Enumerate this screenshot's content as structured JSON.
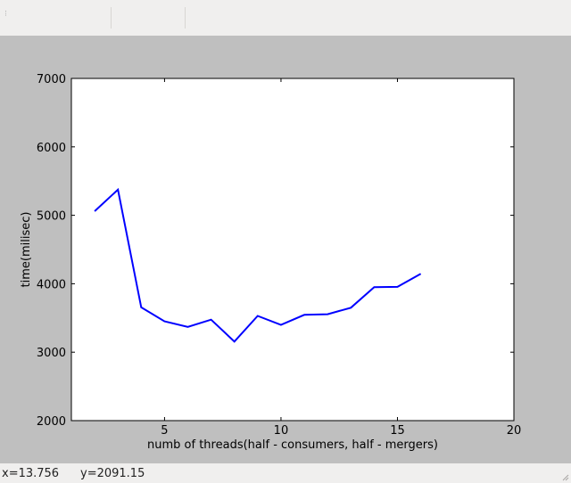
{
  "toolbar": {
    "handle_icon": "toolbar-handle-icon"
  },
  "chart_data": {
    "type": "line",
    "title": "",
    "xlabel": "numb of threads(half  - consumers, half - mergers)",
    "ylabel": "time(milisec)",
    "xlim": [
      1,
      20
    ],
    "ylim": [
      2000,
      7000
    ],
    "xticks": [
      5,
      10,
      15,
      20
    ],
    "yticks": [
      2000,
      3000,
      4000,
      5000,
      6000,
      7000
    ],
    "grid": false,
    "series": [
      {
        "color": "#0000ff",
        "x": [
          2,
          3,
          4,
          5,
          6,
          7,
          8,
          9,
          10,
          11,
          12,
          13,
          14,
          15,
          16
        ],
        "y": [
          5060,
          5375,
          3655,
          3450,
          3370,
          3475,
          3155,
          3530,
          3400,
          3545,
          3555,
          3650,
          3950,
          3955,
          4145
        ]
      }
    ]
  },
  "status": {
    "x_readout": "x=13.756",
    "y_readout": "y=2091.15"
  }
}
